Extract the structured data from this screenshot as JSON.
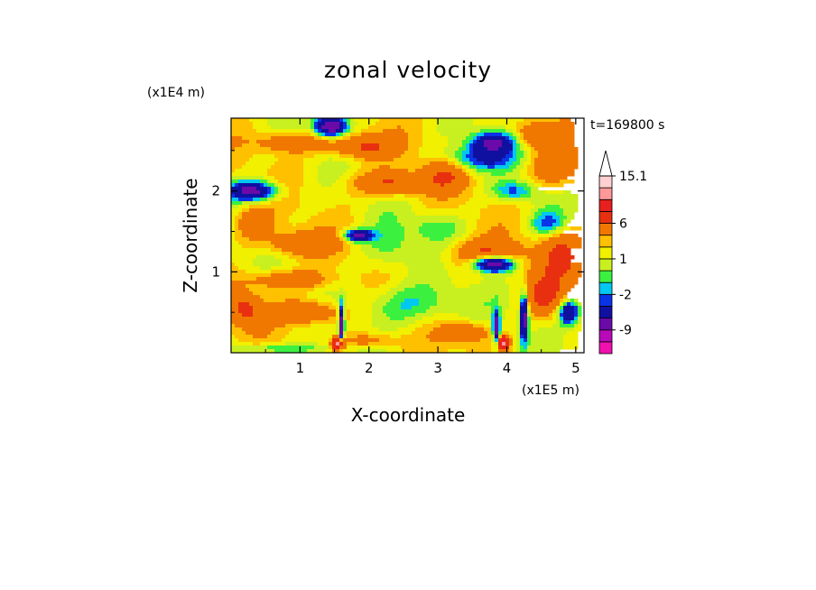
{
  "chart_data": {
    "type": "heatmap",
    "title": "zonal velocity",
    "xlabel": "X-coordinate",
    "ylabel": "Z-coordinate",
    "x_scale_label": "(x1E5 m)",
    "y_scale_label": "(x1E4 m)",
    "time_label": "t=169800 s",
    "xlim": [
      0,
      5.12
    ],
    "ylim": [
      0,
      2.9
    ],
    "x_ticks": [
      1,
      2,
      3,
      4,
      5
    ],
    "y_ticks": [
      1,
      2
    ],
    "x_tick_labels": [
      "1",
      "2",
      "3",
      "4",
      "5"
    ],
    "y_tick_labels": [
      "1",
      "2"
    ],
    "colorbar": {
      "levels": [
        -15,
        -12,
        -9,
        -6,
        -3,
        -2,
        -1,
        0,
        1,
        2,
        3,
        6,
        9,
        12,
        15.1
      ],
      "colors": [
        "#f010b0",
        "#b80ab8",
        "#6a0aa8",
        "#1010a0",
        "#0a32e6",
        "#00c8f0",
        "#3cf040",
        "#c8f020",
        "#f0f000",
        "#ffc000",
        "#f07800",
        "#e83010",
        "#e82020",
        "#ff9898",
        "#ffd0d0"
      ],
      "overflow": "max",
      "labels": [
        {
          "value": 15.1,
          "text": "15.1"
        },
        {
          "value": 6,
          "text": "6"
        },
        {
          "value": 1,
          "text": "1"
        },
        {
          "value": -2,
          "text": "-2"
        },
        {
          "value": -9,
          "text": "-9"
        }
      ]
    },
    "features": [
      {
        "x": 1.45,
        "z": 2.8,
        "sx": 0.22,
        "sz": 0.12,
        "amp": -11
      },
      {
        "x": 0.3,
        "z": 2.0,
        "sx": 0.35,
        "sz": 0.12,
        "amp": -9
      },
      {
        "x": 1.9,
        "z": 2.55,
        "sx": 0.45,
        "sz": 0.15,
        "amp": 5
      },
      {
        "x": 0.9,
        "z": 2.6,
        "sx": 0.5,
        "sz": 0.12,
        "amp": 4
      },
      {
        "x": 3.6,
        "z": 2.4,
        "sx": 0.5,
        "sz": 0.15,
        "amp": -5
      },
      {
        "x": 3.8,
        "z": 2.6,
        "sx": 0.3,
        "sz": 0.12,
        "amp": -8
      },
      {
        "x": 2.3,
        "z": 2.1,
        "sx": 0.5,
        "sz": 0.15,
        "amp": 5
      },
      {
        "x": 3.1,
        "z": 2.2,
        "sx": 0.3,
        "sz": 0.2,
        "amp": 4
      },
      {
        "x": 4.7,
        "z": 2.3,
        "sx": 0.35,
        "sz": 0.25,
        "amp": 4
      },
      {
        "x": 4.1,
        "z": 2.0,
        "sx": 0.3,
        "sz": 0.12,
        "amp": -4
      },
      {
        "x": 4.6,
        "z": 1.6,
        "sx": 0.25,
        "sz": 0.15,
        "amp": -4
      },
      {
        "x": 1.0,
        "z": 1.35,
        "sx": 0.5,
        "sz": 0.15,
        "amp": 4
      },
      {
        "x": 0.3,
        "z": 1.6,
        "sx": 0.3,
        "sz": 0.2,
        "amp": 3
      },
      {
        "x": 1.85,
        "z": 1.45,
        "sx": 0.2,
        "sz": 0.07,
        "amp": -9
      },
      {
        "x": 2.3,
        "z": 1.3,
        "sx": 0.4,
        "sz": 0.3,
        "amp": -2
      },
      {
        "x": 3.7,
        "z": 1.2,
        "sx": 0.5,
        "sz": 0.18,
        "amp": 5
      },
      {
        "x": 3.8,
        "z": 1.1,
        "sx": 0.3,
        "sz": 0.1,
        "amp": -12
      },
      {
        "x": 4.8,
        "z": 1.2,
        "sx": 0.3,
        "sz": 0.3,
        "amp": 5
      },
      {
        "x": 0.8,
        "z": 0.9,
        "sx": 0.6,
        "sz": 0.12,
        "amp": 4
      },
      {
        "x": 2.6,
        "z": 0.6,
        "sx": 0.7,
        "sz": 0.25,
        "amp": -3
      },
      {
        "x": 1.1,
        "z": 0.5,
        "sx": 0.5,
        "sz": 0.15,
        "amp": 5
      },
      {
        "x": 0.2,
        "z": 0.55,
        "sx": 0.25,
        "sz": 0.2,
        "amp": 5
      },
      {
        "x": 4.9,
        "z": 0.5,
        "sx": 0.15,
        "sz": 0.15,
        "amp": -8
      },
      {
        "x": 4.55,
        "z": 0.7,
        "sx": 0.3,
        "sz": 0.25,
        "amp": 5
      },
      {
        "x": 3.4,
        "z": 0.25,
        "sx": 0.35,
        "sz": 0.12,
        "amp": 4
      },
      {
        "x": 2.0,
        "z": 0.15,
        "sx": 0.4,
        "sz": 0.1,
        "amp": 3
      },
      {
        "x": 1.6,
        "z": 0.35,
        "sx": 0.04,
        "sz": 0.25,
        "amp": -10
      },
      {
        "x": 3.85,
        "z": 0.3,
        "sx": 0.05,
        "sz": 0.2,
        "amp": -10
      },
      {
        "x": 4.25,
        "z": 0.45,
        "sx": 0.06,
        "sz": 0.3,
        "amp": -10
      },
      {
        "x": 1.55,
        "z": 0.1,
        "sx": 0.08,
        "sz": 0.08,
        "amp": 12
      },
      {
        "x": 3.95,
        "z": 0.12,
        "sx": 0.08,
        "sz": 0.08,
        "amp": 12
      },
      {
        "x": 0.6,
        "z": 0.05,
        "sx": 0.8,
        "sz": 0.06,
        "amp": -3
      },
      {
        "x": 3.0,
        "z": 1.55,
        "sx": 0.35,
        "sz": 0.15,
        "amp": -2
      },
      {
        "x": 4.4,
        "z": 2.7,
        "sx": 0.3,
        "sz": 0.15,
        "amp": 4
      }
    ]
  }
}
